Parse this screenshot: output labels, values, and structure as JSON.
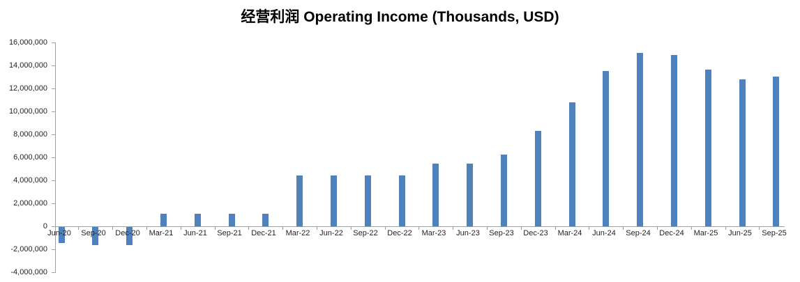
{
  "chart_data": {
    "type": "bar",
    "title": "经营利润 Operating Income (Thousands, USD)",
    "categories": [
      "Jun-20",
      "Sep-20",
      "Dec-20",
      "Mar-21",
      "Jun-21",
      "Sep-21",
      "Dec-21",
      "Mar-22",
      "Jun-22",
      "Sep-22",
      "Dec-22",
      "Mar-23",
      "Jun-23",
      "Sep-23",
      "Dec-23",
      "Mar-24",
      "Jun-24",
      "Sep-24",
      "Dec-24",
      "Mar-25",
      "Jun-25",
      "Sep-25"
    ],
    "values": [
      -1400000,
      -1600000,
      -1550000,
      1100000,
      1100000,
      1100000,
      1100000,
      4400000,
      4400000,
      4400000,
      4400000,
      5450000,
      5450000,
      6250000,
      8300000,
      10800000,
      13500000,
      15100000,
      14900000,
      13650000,
      12800000,
      13000000
    ],
    "xlabel": "",
    "ylabel": "",
    "ylim": [
      -4000000,
      16000000
    ],
    "y_tick_step": 2000000,
    "y_tick_labels_top_to_bottom": [
      "16,000,000",
      "14,000,000",
      "12,000,000",
      "10,000,000",
      "8,000,000",
      "6,000,000",
      "4,000,000",
      "2,000,000",
      "0",
      "-2,000,000",
      "-4,000,000"
    ],
    "grid": "off",
    "legend": "none",
    "bar_color": "#4f81bd",
    "axis_color": "#a0a0a0",
    "text_color": "#1f1f1f",
    "background_color": "#ffffff"
  }
}
